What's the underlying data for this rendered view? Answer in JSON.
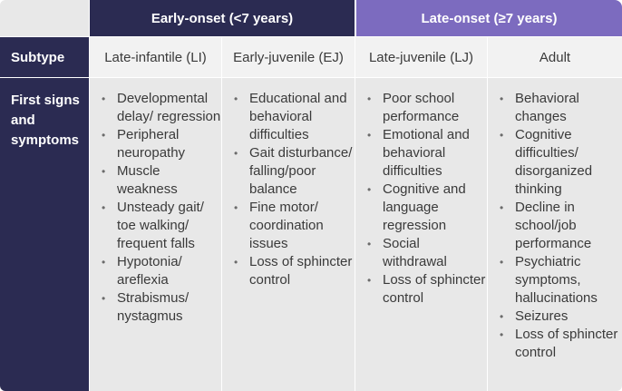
{
  "groups": {
    "early": "Early-onset (<7 years)",
    "late": "Late-onset (≥7 years)"
  },
  "rows": {
    "subtype_label": "Subtype",
    "signs_label": "First signs and symptoms"
  },
  "subtypes": [
    "Late-infantile (LI)",
    "Early-juvenile (EJ)",
    "Late-juvenile (LJ)",
    "Adult"
  ],
  "symptoms": [
    [
      "Developmental delay/ regression",
      "Peripheral neuropathy",
      "Muscle weakness",
      "Unsteady gait/ toe walking/ frequent falls",
      "Hypotonia/ areflexia",
      "Strabismus/ nystagmus"
    ],
    [
      "Educational and behavioral difficulties",
      "Gait disturbance/ falling/poor balance",
      "Fine motor/ coordination issues",
      "Loss of sphincter control"
    ],
    [
      "Poor school performance",
      "Emotional and behavioral difficulties",
      "Cognitive and language regression",
      "Social withdrawal",
      "Loss of sphincter control"
    ],
    [
      "Behavioral changes",
      "Cognitive difficulties/ disorganized thinking",
      "Decline in school/job performance",
      "Psychiatric symptoms, hallucinations",
      "Seizures",
      "Loss of sphincter control"
    ]
  ],
  "colors": {
    "early_header": "#2b2b52",
    "late_header": "#7c6bbf",
    "cell_bg": "#e8e8e8",
    "subtype_bg": "#f2f2f2"
  }
}
